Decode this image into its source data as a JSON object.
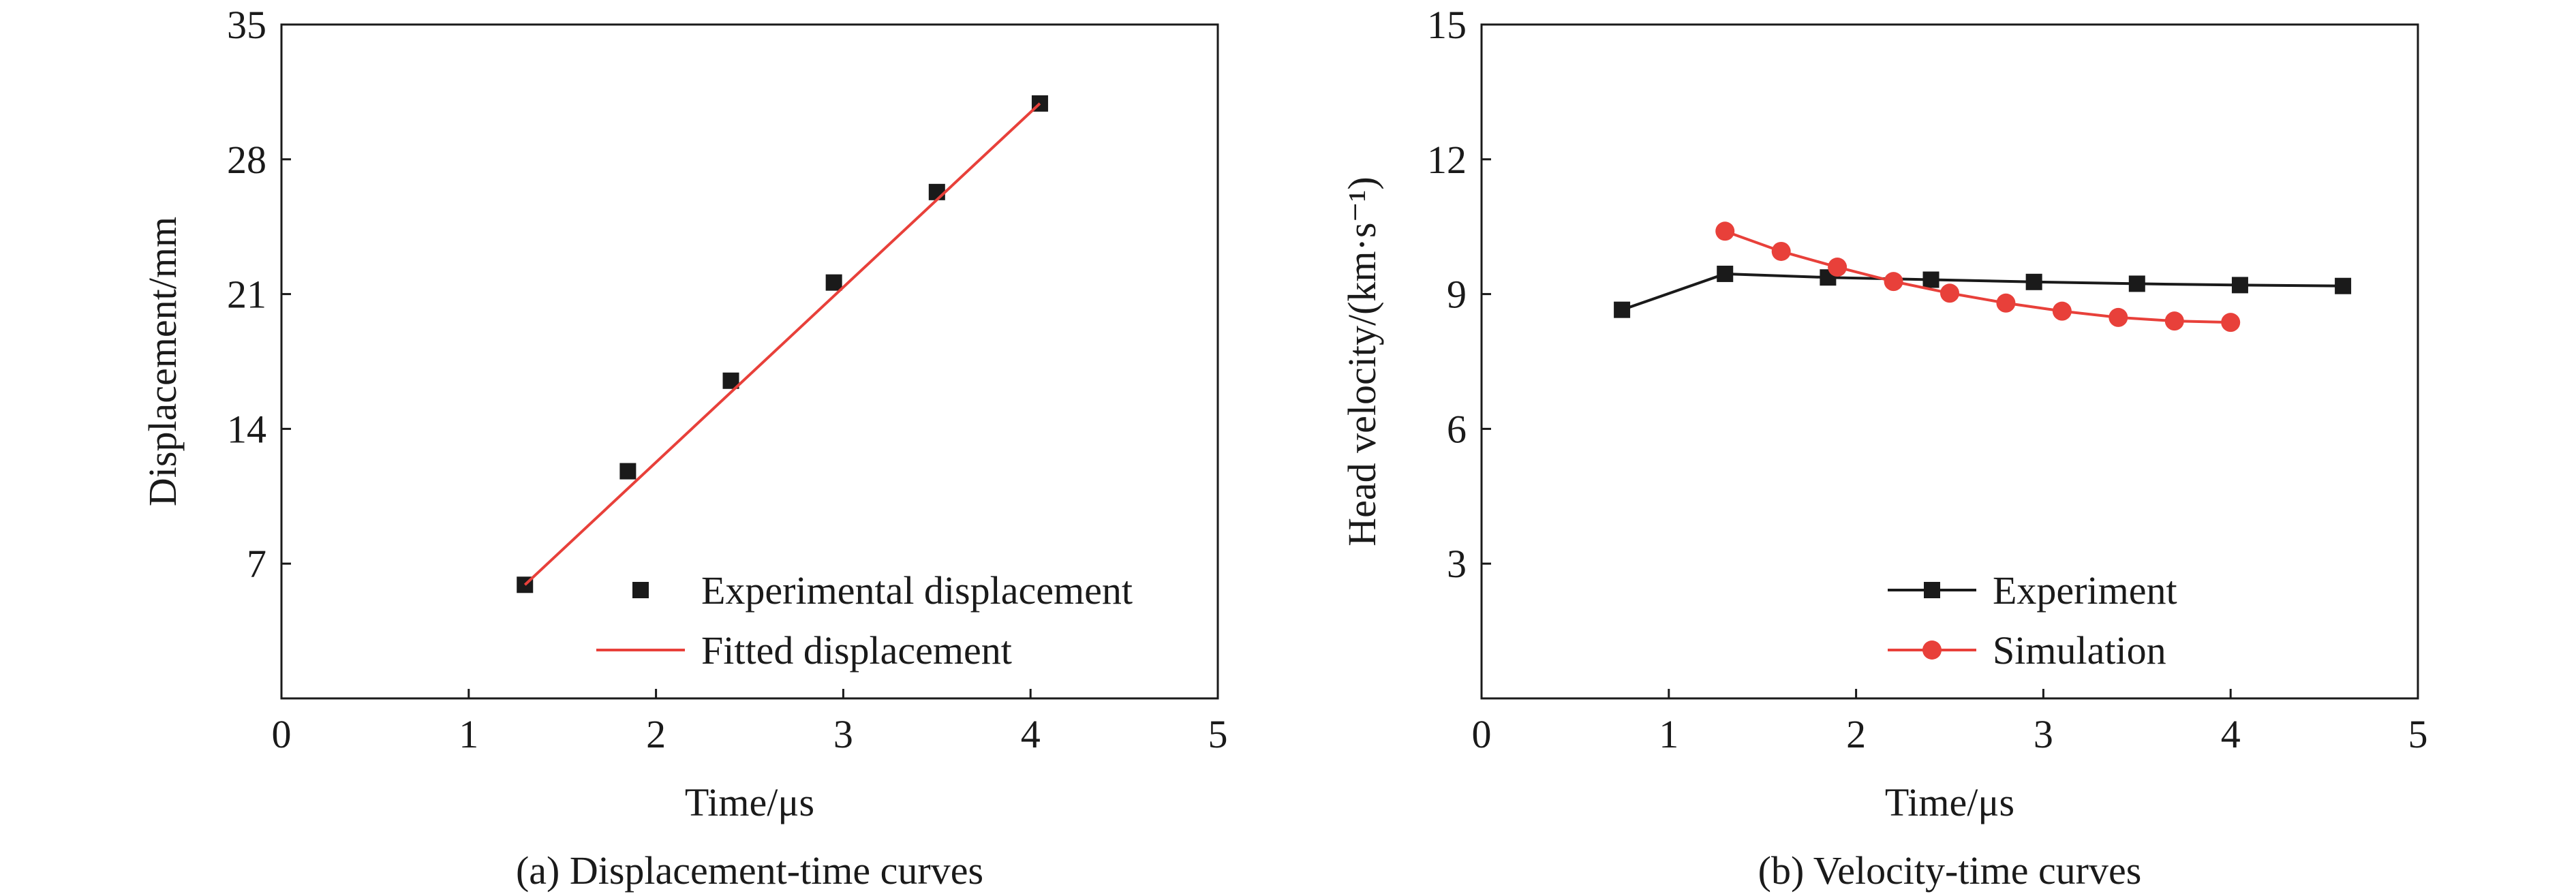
{
  "chart_data": [
    {
      "type": "scatter",
      "caption": "(a) Displacement-time curves",
      "xlabel": "Time/μs",
      "ylabel": "Displacement/mm",
      "xlim": [
        0,
        5
      ],
      "ylim": [
        0,
        35
      ],
      "xticks": [
        0,
        1,
        2,
        3,
        4,
        5
      ],
      "yticks": [
        7,
        14,
        21,
        28,
        35
      ],
      "y_origin_label": "0",
      "grid": false,
      "legend_position": "bottom-right",
      "series": [
        {
          "name": "Experimental displacement",
          "style": "markers",
          "marker": "square",
          "color": "#1a1a1a",
          "x": [
            1.3,
            1.85,
            2.4,
            2.95,
            3.5,
            4.05
          ],
          "y": [
            5.9,
            11.8,
            16.5,
            21.6,
            26.3,
            30.9
          ]
        },
        {
          "name": "Fitted displacement",
          "style": "line",
          "color": "#e8403a",
          "x": [
            1.3,
            4.05
          ],
          "y": [
            5.9,
            30.9
          ]
        }
      ]
    },
    {
      "type": "line",
      "caption": "(b) Velocity-time curves",
      "xlabel": "Time/μs",
      "ylabel": "Head velocity/(km·s⁻¹)",
      "xlim": [
        0,
        5
      ],
      "ylim": [
        0,
        15
      ],
      "xticks": [
        0,
        1,
        2,
        3,
        4,
        5
      ],
      "yticks": [
        3,
        6,
        9,
        12,
        15
      ],
      "y_origin_label": "0",
      "grid": false,
      "legend_position": "bottom-right",
      "series": [
        {
          "name": "Experiment",
          "style": "line-markers",
          "marker": "square",
          "color": "#1a1a1a",
          "x": [
            0.75,
            1.3,
            1.85,
            2.4,
            2.95,
            3.5,
            4.05,
            4.6
          ],
          "y": [
            8.65,
            9.45,
            9.37,
            9.32,
            9.27,
            9.23,
            9.2,
            9.18
          ]
        },
        {
          "name": "Simulation",
          "style": "line-markers",
          "marker": "circle",
          "color": "#e8403a",
          "x": [
            1.3,
            1.6,
            1.9,
            2.2,
            2.5,
            2.8,
            3.1,
            3.4,
            3.7,
            4.0
          ],
          "y": [
            10.4,
            9.95,
            9.6,
            9.28,
            9.02,
            8.8,
            8.62,
            8.48,
            8.4,
            8.37
          ]
        }
      ]
    }
  ]
}
